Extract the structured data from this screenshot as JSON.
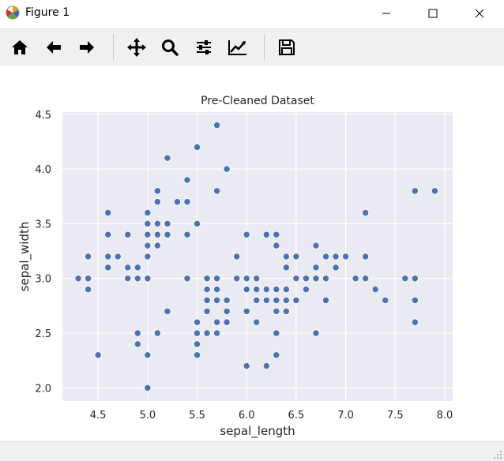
{
  "window": {
    "title": "Figure 1",
    "icons": {
      "app": "matplotlib-figure-icon",
      "minimize": "minimize-icon",
      "maximize": "maximize-icon",
      "close": "close-icon"
    }
  },
  "toolbar": {
    "buttons": [
      {
        "name": "home",
        "icon": "home-icon"
      },
      {
        "name": "back",
        "icon": "arrow-left-icon"
      },
      {
        "name": "forward",
        "icon": "arrow-right-icon"
      },
      {
        "name": "pan",
        "icon": "move-icon"
      },
      {
        "name": "zoom",
        "icon": "magnifier-icon"
      },
      {
        "name": "subplots",
        "icon": "sliders-icon"
      },
      {
        "name": "customize",
        "icon": "line-chart-icon"
      },
      {
        "name": "save",
        "icon": "floppy-disk-icon"
      }
    ]
  },
  "colors": {
    "plot_bg": "#eaeaf2",
    "marker": "#4c72b0",
    "grid": "#ffffff"
  },
  "chart_data": {
    "type": "scatter",
    "title": "Pre-Cleaned Dataset",
    "xlabel": "sepal_length",
    "ylabel": "sepal_width",
    "xlim": [
      4.14,
      8.08
    ],
    "ylim": [
      1.88,
      4.52
    ],
    "xticks": [
      "4.5",
      "5.0",
      "5.5",
      "6.0",
      "6.5",
      "7.0",
      "7.5",
      "8.0"
    ],
    "xtick_values": [
      4.5,
      5.0,
      5.5,
      6.0,
      6.5,
      7.0,
      7.5,
      8.0
    ],
    "yticks": [
      "2.0",
      "2.5",
      "3.0",
      "3.5",
      "4.0",
      "4.5"
    ],
    "ytick_values": [
      2.0,
      2.5,
      3.0,
      3.5,
      4.0,
      4.5
    ],
    "grid": true,
    "points": [
      [
        4.3,
        3.0
      ],
      [
        4.4,
        2.9
      ],
      [
        4.4,
        3.0
      ],
      [
        4.4,
        3.2
      ],
      [
        4.5,
        2.3
      ],
      [
        4.6,
        3.1
      ],
      [
        4.6,
        3.2
      ],
      [
        4.6,
        3.4
      ],
      [
        4.6,
        3.6
      ],
      [
        4.7,
        3.2
      ],
      [
        4.8,
        3.0
      ],
      [
        4.8,
        3.1
      ],
      [
        4.8,
        3.4
      ],
      [
        4.9,
        2.4
      ],
      [
        4.9,
        2.5
      ],
      [
        4.9,
        3.0
      ],
      [
        4.9,
        3.1
      ],
      [
        5.0,
        2.0
      ],
      [
        5.0,
        2.3
      ],
      [
        5.0,
        3.0
      ],
      [
        5.0,
        3.2
      ],
      [
        5.0,
        3.3
      ],
      [
        5.0,
        3.4
      ],
      [
        5.0,
        3.5
      ],
      [
        5.0,
        3.6
      ],
      [
        5.1,
        2.5
      ],
      [
        5.1,
        3.3
      ],
      [
        5.1,
        3.4
      ],
      [
        5.1,
        3.5
      ],
      [
        5.1,
        3.7
      ],
      [
        5.1,
        3.8
      ],
      [
        5.2,
        2.7
      ],
      [
        5.2,
        3.4
      ],
      [
        5.2,
        3.5
      ],
      [
        5.2,
        4.1
      ],
      [
        5.3,
        3.7
      ],
      [
        5.4,
        3.0
      ],
      [
        5.4,
        3.4
      ],
      [
        5.4,
        3.7
      ],
      [
        5.4,
        3.9
      ],
      [
        5.5,
        2.3
      ],
      [
        5.5,
        2.4
      ],
      [
        5.5,
        2.5
      ],
      [
        5.5,
        2.6
      ],
      [
        5.5,
        3.5
      ],
      [
        5.5,
        4.2
      ],
      [
        5.6,
        2.5
      ],
      [
        5.6,
        2.7
      ],
      [
        5.6,
        2.8
      ],
      [
        5.6,
        2.9
      ],
      [
        5.6,
        3.0
      ],
      [
        5.7,
        2.5
      ],
      [
        5.7,
        2.6
      ],
      [
        5.7,
        2.8
      ],
      [
        5.7,
        2.9
      ],
      [
        5.7,
        3.0
      ],
      [
        5.7,
        3.8
      ],
      [
        5.7,
        4.4
      ],
      [
        5.8,
        2.6
      ],
      [
        5.8,
        2.7
      ],
      [
        5.8,
        2.8
      ],
      [
        5.8,
        4.0
      ],
      [
        5.9,
        3.0
      ],
      [
        5.9,
        3.2
      ],
      [
        6.0,
        2.2
      ],
      [
        6.0,
        2.7
      ],
      [
        6.0,
        2.9
      ],
      [
        6.0,
        3.0
      ],
      [
        6.0,
        3.4
      ],
      [
        6.1,
        2.6
      ],
      [
        6.1,
        2.8
      ],
      [
        6.1,
        2.9
      ],
      [
        6.1,
        3.0
      ],
      [
        6.2,
        2.2
      ],
      [
        6.2,
        2.8
      ],
      [
        6.2,
        2.9
      ],
      [
        6.2,
        3.4
      ],
      [
        6.3,
        2.3
      ],
      [
        6.3,
        2.5
      ],
      [
        6.3,
        2.7
      ],
      [
        6.3,
        2.8
      ],
      [
        6.3,
        2.9
      ],
      [
        6.3,
        3.3
      ],
      [
        6.3,
        3.4
      ],
      [
        6.4,
        2.7
      ],
      [
        6.4,
        2.8
      ],
      [
        6.4,
        2.9
      ],
      [
        6.4,
        3.1
      ],
      [
        6.4,
        3.2
      ],
      [
        6.5,
        2.8
      ],
      [
        6.5,
        3.0
      ],
      [
        6.5,
        3.2
      ],
      [
        6.6,
        2.9
      ],
      [
        6.6,
        3.0
      ],
      [
        6.7,
        2.5
      ],
      [
        6.7,
        3.0
      ],
      [
        6.7,
        3.1
      ],
      [
        6.7,
        3.3
      ],
      [
        6.8,
        2.8
      ],
      [
        6.8,
        3.0
      ],
      [
        6.8,
        3.2
      ],
      [
        6.9,
        3.1
      ],
      [
        6.9,
        3.2
      ],
      [
        7.0,
        3.2
      ],
      [
        7.1,
        3.0
      ],
      [
        7.2,
        3.0
      ],
      [
        7.2,
        3.2
      ],
      [
        7.2,
        3.6
      ],
      [
        7.3,
        2.9
      ],
      [
        7.4,
        2.8
      ],
      [
        7.6,
        3.0
      ],
      [
        7.7,
        2.6
      ],
      [
        7.7,
        2.8
      ],
      [
        7.7,
        3.0
      ],
      [
        7.7,
        3.8
      ],
      [
        7.9,
        3.8
      ]
    ]
  }
}
